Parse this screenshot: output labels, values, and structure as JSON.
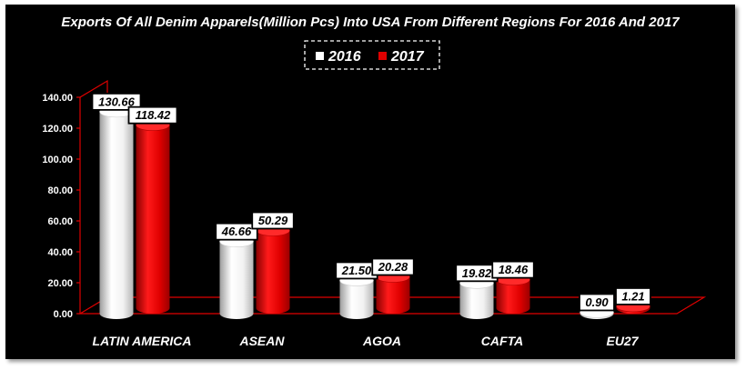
{
  "chart_data": {
    "type": "bar",
    "title": "Exports Of All Denim Apparels(Million Pcs) Into USA From Different Regions For 2016 And 2017",
    "categories": [
      "LATIN AMERICA",
      "ASEAN",
      "AGOA",
      "CAFTA",
      "EU27"
    ],
    "series": [
      {
        "name": "2016",
        "values": [
          130.66,
          46.66,
          21.5,
          19.82,
          0.9
        ],
        "labels": [
          "130.66",
          "46.66",
          "21.50",
          "19.82",
          "0.90"
        ],
        "color": "#ffffff"
      },
      {
        "name": "2017",
        "values": [
          118.42,
          50.29,
          20.28,
          18.46,
          1.21
        ],
        "labels": [
          "118.42",
          "50.29",
          "20.28",
          "18.46",
          "1.21"
        ],
        "color": "#e00000"
      }
    ],
    "yticks": [
      "0.00",
      "20.00",
      "40.00",
      "60.00",
      "80.00",
      "100.00",
      "120.00",
      "140.00"
    ],
    "ylim": [
      0,
      140
    ],
    "xlabel": "",
    "ylabel": "",
    "legend_position": "top-center",
    "grid": false,
    "colors": {
      "background": "#000000",
      "axis": "#e00000",
      "text": "#ffffff"
    }
  }
}
